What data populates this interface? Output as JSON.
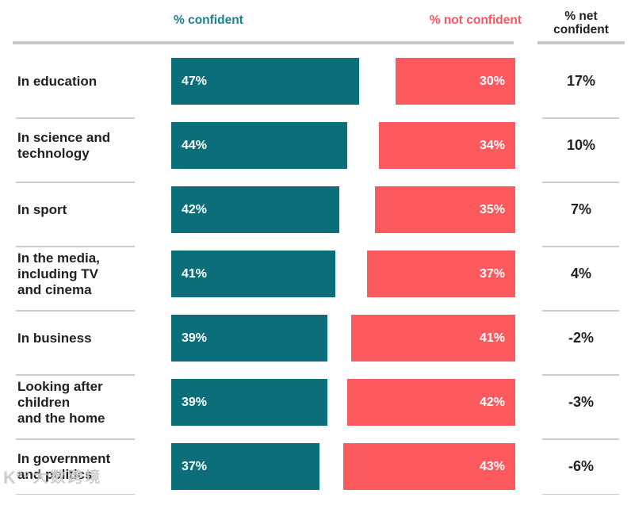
{
  "header": {
    "confident_label": "% confident",
    "not_confident_label": "% not confident",
    "net_label": "% net\nconfident"
  },
  "colors": {
    "confident_bar": "#0B6E78",
    "not_confident_bar": "#FC5A5F",
    "confident_header_text": "#1C7E90",
    "not_confident_header_text": "#F7565F",
    "text_dark": "#212121",
    "divider": "#CCCCCC",
    "header_underline": "#C7C7C7",
    "bar_value_text": "#FFFFFF"
  },
  "watermark": {
    "logo": "K°°",
    "text": "大数跨境"
  },
  "chart_data": {
    "type": "bar",
    "orientation": "horizontal",
    "title": "",
    "categories": [
      "In education",
      "In science and\ntechnology",
      "In sport",
      "In the media,\nincluding TV\nand cinema",
      "In business",
      "Looking after\nchildren\nand the home",
      "In government\nand politics"
    ],
    "series": [
      {
        "name": "% confident",
        "color": "#0B6E78",
        "values": [
          47,
          44,
          42,
          41,
          39,
          39,
          37
        ]
      },
      {
        "name": "% not confident",
        "color": "#FC5A5F",
        "values": [
          30,
          34,
          35,
          37,
          41,
          42,
          43
        ]
      }
    ],
    "net_confident": [
      17,
      10,
      7,
      4,
      -2,
      -3,
      -6
    ],
    "value_suffix": "%",
    "axis_range_percent": [
      0,
      50
    ],
    "grid": false,
    "legend_position": "top",
    "value_labels": "inside-bars"
  }
}
